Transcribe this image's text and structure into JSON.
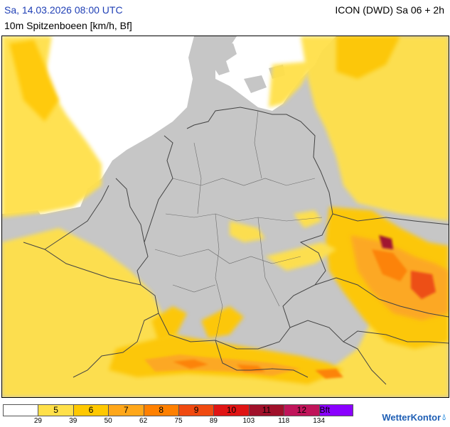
{
  "header": {
    "datetime": "Sa, 14.03.2026 08:00 UTC",
    "parameter": "10m Spitzenboeen [km/h, Bf]",
    "model": "ICON (DWD) Sa 06 + 2h"
  },
  "legend": {
    "bins": [
      {
        "bf": "",
        "color": "#ffffff"
      },
      {
        "bf": "5",
        "color": "#ffe04a"
      },
      {
        "bf": "6",
        "color": "#ffc800"
      },
      {
        "bf": "7",
        "color": "#ffa71a"
      },
      {
        "bf": "8",
        "color": "#ff8000"
      },
      {
        "bf": "9",
        "color": "#f04a10"
      },
      {
        "bf": "10",
        "color": "#e01414"
      },
      {
        "bf": "11",
        "color": "#a0102a"
      },
      {
        "bf": "12",
        "color": "#c0145a"
      },
      {
        "bf": "Bft",
        "color": "#8a00ff"
      }
    ],
    "ticks": [
      "29",
      "39",
      "50",
      "62",
      "75",
      "89",
      "103",
      "118",
      "134"
    ]
  },
  "brand": {
    "name": "WetterKontor",
    "icon": "raindrop-icon"
  },
  "colors": {
    "land": "#c6c6c6",
    "sea": "#ffffff",
    "borders": "#444444"
  }
}
